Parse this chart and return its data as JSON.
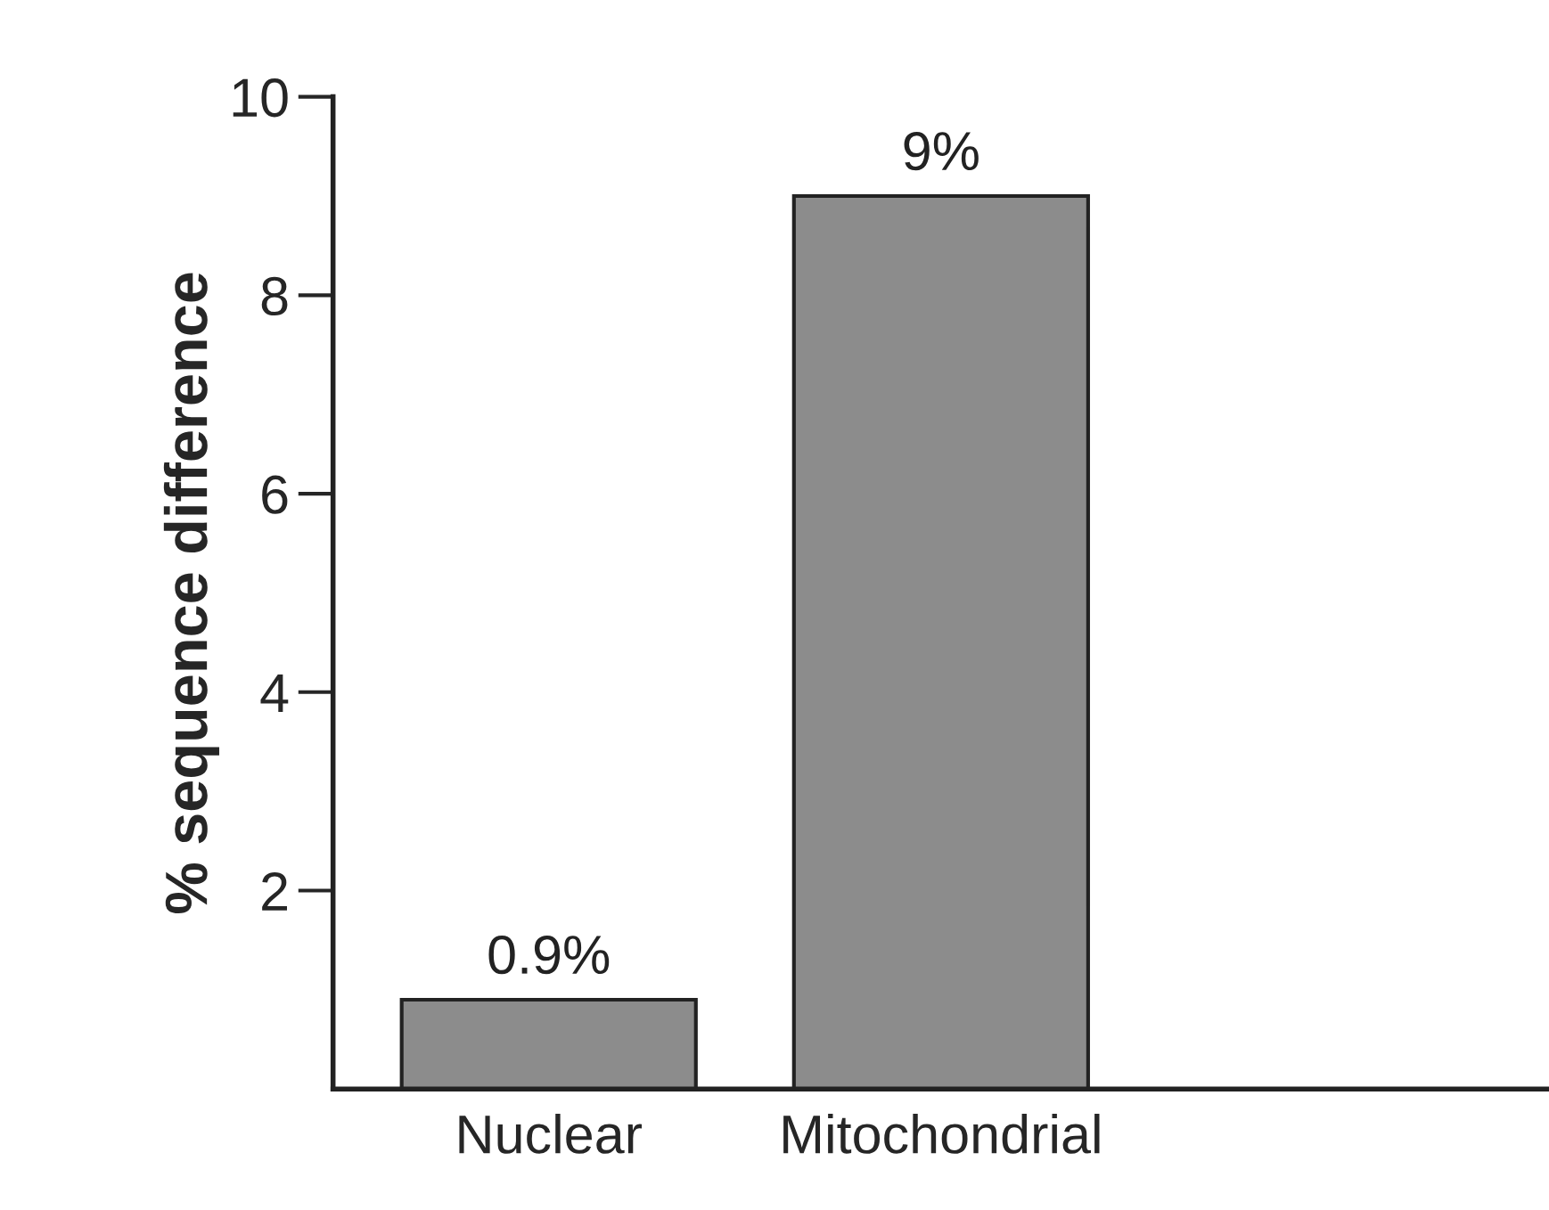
{
  "chart_data": {
    "type": "bar",
    "ylabel": "% sequence difference",
    "categories": [
      "Nuclear",
      "Mitochondrial"
    ],
    "values": [
      0.9,
      9
    ],
    "value_labels": [
      "0.9%",
      "9%"
    ],
    "color": "#8c8c8c",
    "ylim": [
      0,
      10
    ],
    "yticks": [
      2,
      4,
      6,
      8,
      10
    ],
    "grid": false
  }
}
